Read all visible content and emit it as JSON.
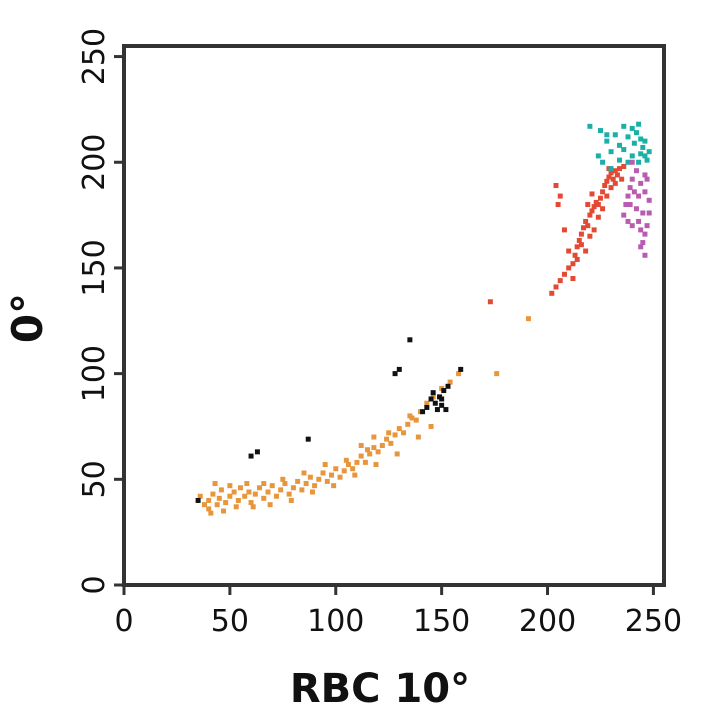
{
  "chart_data": {
    "type": "scatter",
    "xlabel": "RBC 10°",
    "ylabel": "0°",
    "xlim": [
      0,
      255
    ],
    "ylim": [
      0,
      255
    ],
    "x_ticks": [
      0,
      50,
      100,
      150,
      200,
      250
    ],
    "y_ticks": [
      0,
      50,
      100,
      150,
      200,
      250
    ],
    "grid": false,
    "legend": "none",
    "series": [
      {
        "color": "#E8963C",
        "marker": "square",
        "points": [
          [
            38,
            38
          ],
          [
            40,
            36
          ],
          [
            40,
            40
          ],
          [
            42,
            43
          ],
          [
            44,
            38
          ],
          [
            45,
            41
          ],
          [
            46,
            45
          ],
          [
            48,
            39
          ],
          [
            50,
            42
          ],
          [
            52,
            44
          ],
          [
            54,
            40
          ],
          [
            55,
            46
          ],
          [
            57,
            42
          ],
          [
            59,
            44
          ],
          [
            60,
            39
          ],
          [
            62,
            43
          ],
          [
            64,
            46
          ],
          [
            66,
            41
          ],
          [
            68,
            44
          ],
          [
            70,
            47
          ],
          [
            72,
            42
          ],
          [
            74,
            45
          ],
          [
            76,
            48
          ],
          [
            78,
            43
          ],
          [
            80,
            46
          ],
          [
            82,
            49
          ],
          [
            84,
            45
          ],
          [
            86,
            48
          ],
          [
            88,
            51
          ],
          [
            90,
            47
          ],
          [
            92,
            50
          ],
          [
            94,
            53
          ],
          [
            96,
            49
          ],
          [
            98,
            52
          ],
          [
            100,
            55
          ],
          [
            102,
            51
          ],
          [
            104,
            54
          ],
          [
            106,
            57
          ],
          [
            108,
            55
          ],
          [
            110,
            58
          ],
          [
            112,
            61
          ],
          [
            114,
            58
          ],
          [
            116,
            62
          ],
          [
            118,
            65
          ],
          [
            120,
            63
          ],
          [
            122,
            66
          ],
          [
            124,
            69
          ],
          [
            126,
            67
          ],
          [
            128,
            71
          ],
          [
            130,
            74
          ],
          [
            132,
            72
          ],
          [
            134,
            76
          ],
          [
            136,
            79
          ],
          [
            138,
            78
          ],
          [
            140,
            82
          ],
          [
            143,
            86
          ],
          [
            146,
            89
          ],
          [
            150,
            93
          ],
          [
            154,
            96
          ],
          [
            158,
            100
          ],
          [
            176,
            100
          ],
          [
            191,
            126
          ],
          [
            36,
            42
          ],
          [
            43,
            48
          ],
          [
            50,
            47
          ],
          [
            58,
            48
          ],
          [
            66,
            48
          ],
          [
            75,
            50
          ],
          [
            85,
            53
          ],
          [
            95,
            57
          ],
          [
            105,
            59
          ],
          [
            115,
            64
          ],
          [
            125,
            72
          ],
          [
            135,
            80
          ],
          [
            41,
            34
          ],
          [
            47,
            35
          ],
          [
            53,
            37
          ],
          [
            61,
            37
          ],
          [
            69,
            38
          ],
          [
            79,
            40
          ],
          [
            89,
            44
          ],
          [
            99,
            47
          ],
          [
            109,
            52
          ],
          [
            119,
            57
          ],
          [
            129,
            62
          ],
          [
            139,
            70
          ],
          [
            145,
            75
          ],
          [
            112,
            66
          ],
          [
            118,
            70
          ]
        ]
      },
      {
        "color": "#E34A34",
        "marker": "square",
        "points": [
          [
            173,
            134
          ],
          [
            202,
            138
          ],
          [
            204,
            141
          ],
          [
            206,
            144
          ],
          [
            208,
            147
          ],
          [
            210,
            150
          ],
          [
            212,
            152
          ],
          [
            213,
            156
          ],
          [
            214,
            160
          ],
          [
            215,
            163
          ],
          [
            216,
            166
          ],
          [
            217,
            169
          ],
          [
            218,
            172
          ],
          [
            219,
            170
          ],
          [
            220,
            175
          ],
          [
            221,
            177
          ],
          [
            222,
            179
          ],
          [
            223,
            181
          ],
          [
            224,
            180
          ],
          [
            225,
            183
          ],
          [
            226,
            186
          ],
          [
            227,
            189
          ],
          [
            228,
            191
          ],
          [
            229,
            193
          ],
          [
            230,
            195
          ],
          [
            231,
            192
          ],
          [
            232,
            196
          ],
          [
            233,
            194
          ],
          [
            234,
            197
          ],
          [
            224,
            174
          ],
          [
            226,
            178
          ],
          [
            228,
            184
          ],
          [
            230,
            188
          ],
          [
            232,
            190
          ],
          [
            216,
            161
          ],
          [
            218,
            158
          ],
          [
            220,
            165
          ],
          [
            222,
            168
          ],
          [
            205,
            180
          ],
          [
            204,
            189
          ],
          [
            206,
            184
          ],
          [
            208,
            168
          ],
          [
            210,
            158
          ],
          [
            212,
            145
          ],
          [
            214,
            154
          ],
          [
            236,
            198
          ],
          [
            235,
            192
          ],
          [
            229,
            197
          ],
          [
            221,
            185
          ],
          [
            219,
            180
          ]
        ]
      },
      {
        "color": "#1AB0A8",
        "marker": "square",
        "points": [
          [
            220,
            217
          ],
          [
            225,
            215
          ],
          [
            228,
            210
          ],
          [
            230,
            205
          ],
          [
            232,
            213
          ],
          [
            234,
            208
          ],
          [
            236,
            206
          ],
          [
            238,
            212
          ],
          [
            240,
            216
          ],
          [
            241,
            209
          ],
          [
            242,
            214
          ],
          [
            243,
            218
          ],
          [
            244,
            211
          ],
          [
            245,
            207
          ],
          [
            246,
            203
          ],
          [
            247,
            201
          ],
          [
            244,
            204
          ],
          [
            243,
            200
          ],
          [
            246,
            210
          ],
          [
            248,
            205
          ],
          [
            226,
            200
          ],
          [
            230,
            197
          ],
          [
            224,
            203
          ],
          [
            234,
            201
          ],
          [
            228,
            213
          ],
          [
            236,
            217
          ],
          [
            240,
            203
          ],
          [
            238,
            200
          ]
        ]
      },
      {
        "color": "#B85CB0",
        "marker": "square",
        "points": [
          [
            236,
            175
          ],
          [
            237,
            180
          ],
          [
            238,
            184
          ],
          [
            239,
            188
          ],
          [
            240,
            192
          ],
          [
            241,
            186
          ],
          [
            242,
            178
          ],
          [
            243,
            172
          ],
          [
            244,
            168
          ],
          [
            245,
            162
          ],
          [
            246,
            156
          ],
          [
            247,
            170
          ],
          [
            248,
            182
          ],
          [
            244,
            190
          ],
          [
            242,
            196
          ],
          [
            240,
            200
          ],
          [
            246,
            186
          ],
          [
            248,
            176
          ],
          [
            238,
            172
          ],
          [
            240,
            170
          ],
          [
            245,
            176
          ],
          [
            247,
            192
          ],
          [
            243,
            184
          ],
          [
            246,
            194
          ],
          [
            244,
            160
          ],
          [
            246,
            166
          ],
          [
            239,
            180
          ]
        ]
      },
      {
        "color": "#111111",
        "marker": "square",
        "points": [
          [
            35,
            40
          ],
          [
            60,
            61
          ],
          [
            63,
            63
          ],
          [
            87,
            69
          ],
          [
            128,
            100
          ],
          [
            130,
            102
          ],
          [
            135,
            116
          ],
          [
            143,
            84
          ],
          [
            145,
            88
          ],
          [
            147,
            86
          ],
          [
            148,
            83
          ],
          [
            149,
            89
          ],
          [
            150,
            85
          ],
          [
            151,
            92
          ],
          [
            152,
            83
          ],
          [
            153,
            94
          ],
          [
            159,
            102
          ],
          [
            141,
            82
          ],
          [
            146,
            91
          ],
          [
            150,
            88
          ]
        ]
      }
    ]
  }
}
